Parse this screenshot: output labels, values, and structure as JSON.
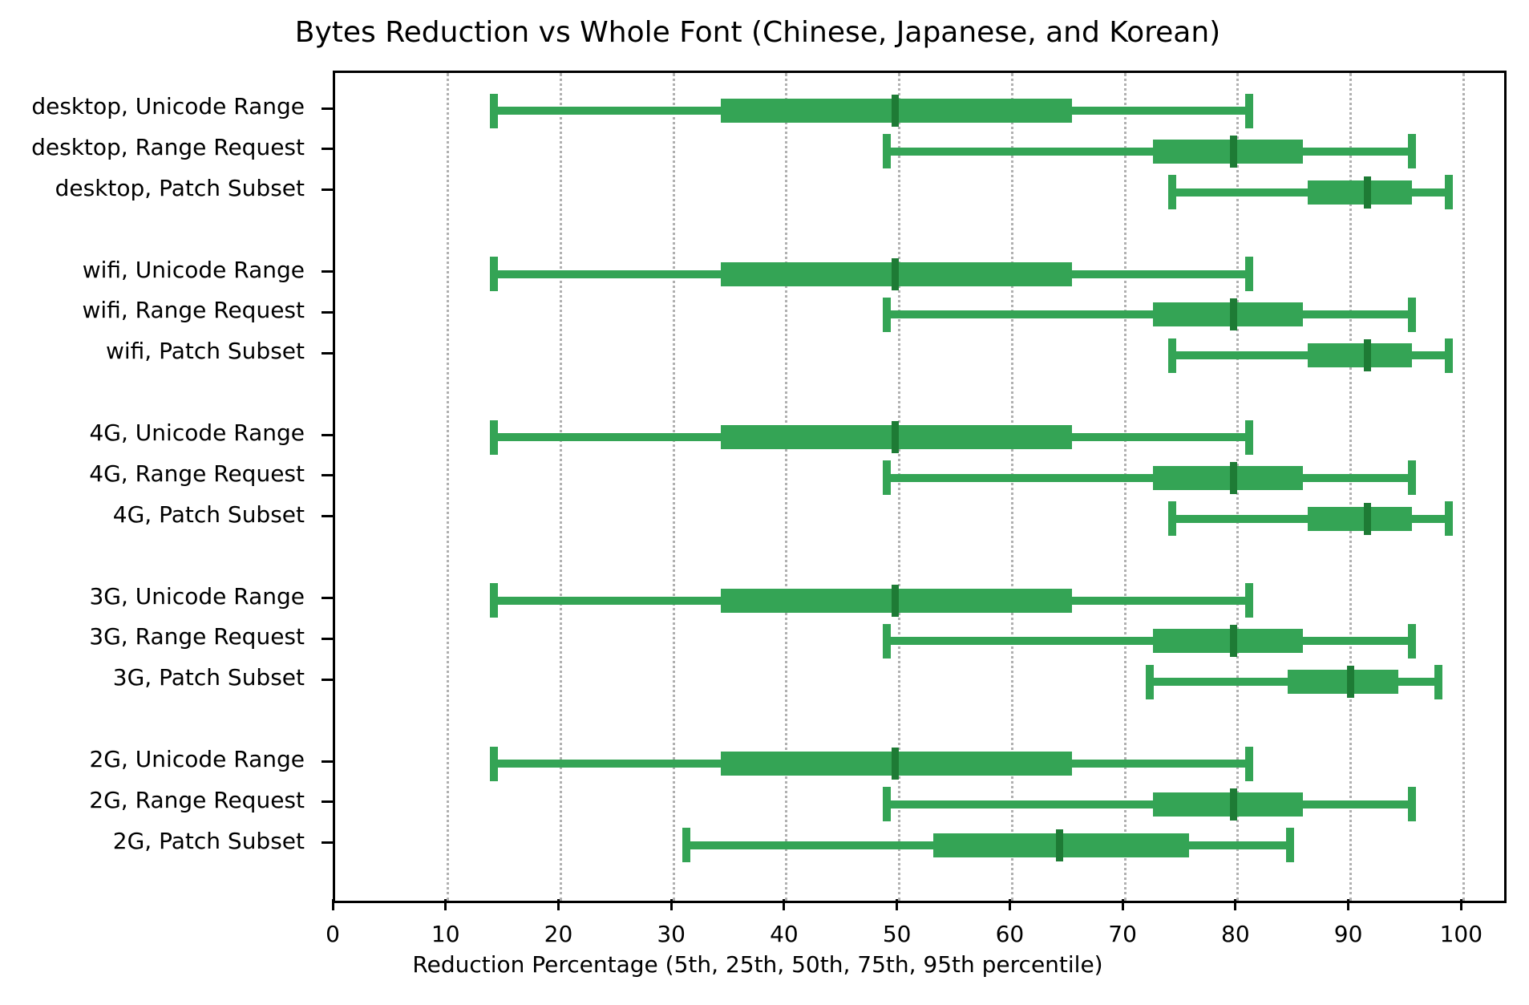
{
  "chart_data": {
    "type": "boxplot",
    "orientation": "horizontal",
    "title": "Bytes Reduction vs Whole Font (Chinese, Japanese, and Korean)",
    "xlabel": "Reduction Percentage (5th, 25th, 50th, 75th, 95th percentile)",
    "x_ticks": [
      0,
      10,
      20,
      30,
      40,
      50,
      60,
      70,
      80,
      90,
      100
    ],
    "xlim": [
      0,
      103.6
    ],
    "grid": {
      "axis": "x",
      "style": "dotted",
      "color": "#b0b0b0",
      "on": true
    },
    "legend": "none",
    "percentiles_shown": [
      "5th",
      "25th",
      "50th",
      "75th",
      "95th"
    ],
    "box_color": "#34a455",
    "median_color": "#1e7b35",
    "groups": [
      "desktop",
      "wifi",
      "4G",
      "3G",
      "2G"
    ],
    "methods": [
      "Unicode Range",
      "Range Request",
      "Patch Subset"
    ],
    "rows": [
      {
        "label": "desktop, Unicode Range",
        "p5": 14.1,
        "p25": 34.2,
        "p50": 49.6,
        "p75": 65.3,
        "p95": 81.0
      },
      {
        "label": "desktop, Range Request",
        "p5": 48.9,
        "p25": 72.5,
        "p50": 79.6,
        "p75": 85.8,
        "p95": 95.4
      },
      {
        "label": "desktop, Patch Subset",
        "p5": 74.2,
        "p25": 86.2,
        "p50": 91.5,
        "p75": 95.4,
        "p95": 98.7
      },
      {
        "label": "wifi, Unicode Range",
        "p5": 14.1,
        "p25": 34.2,
        "p50": 49.6,
        "p75": 65.3,
        "p95": 81.0
      },
      {
        "label": "wifi, Range Request",
        "p5": 48.9,
        "p25": 72.5,
        "p50": 79.6,
        "p75": 85.8,
        "p95": 95.4
      },
      {
        "label": "wifi, Patch Subset",
        "p5": 74.2,
        "p25": 86.2,
        "p50": 91.5,
        "p75": 95.4,
        "p95": 98.7
      },
      {
        "label": "4G, Unicode Range",
        "p5": 14.1,
        "p25": 34.2,
        "p50": 49.6,
        "p75": 65.3,
        "p95": 81.0
      },
      {
        "label": "4G, Range Request",
        "p5": 48.9,
        "p25": 72.5,
        "p50": 79.6,
        "p75": 85.8,
        "p95": 95.4
      },
      {
        "label": "4G, Patch Subset",
        "p5": 74.2,
        "p25": 86.2,
        "p50": 91.5,
        "p75": 95.4,
        "p95": 98.7
      },
      {
        "label": "3G, Unicode Range",
        "p5": 14.1,
        "p25": 34.2,
        "p50": 49.6,
        "p75": 65.3,
        "p95": 81.0
      },
      {
        "label": "3G, Range Request",
        "p5": 48.9,
        "p25": 72.5,
        "p50": 79.6,
        "p75": 85.8,
        "p95": 95.4
      },
      {
        "label": "3G, Patch Subset",
        "p5": 72.2,
        "p25": 84.4,
        "p50": 90.0,
        "p75": 94.2,
        "p95": 97.8
      },
      {
        "label": "2G, Unicode Range",
        "p5": 14.1,
        "p25": 34.2,
        "p50": 49.6,
        "p75": 65.3,
        "p95": 81.0
      },
      {
        "label": "2G, Range Request",
        "p5": 48.9,
        "p25": 72.5,
        "p50": 79.6,
        "p75": 85.8,
        "p95": 95.4
      },
      {
        "label": "2G, Patch Subset",
        "p5": 31.1,
        "p25": 53.0,
        "p50": 64.2,
        "p75": 75.7,
        "p95": 84.6
      }
    ]
  }
}
